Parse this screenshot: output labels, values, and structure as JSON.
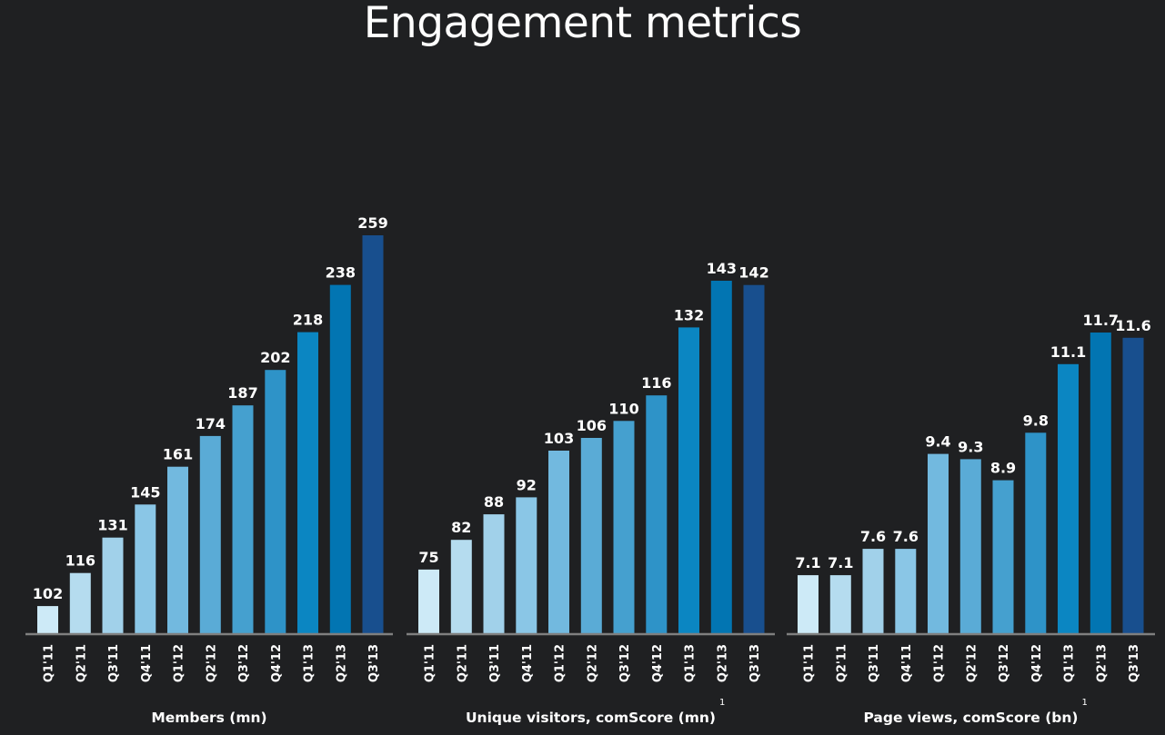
{
  "page": {
    "title": "Engagement metrics"
  },
  "colors": {
    "background": "#1f2022",
    "axis": "#7f7f7f",
    "text": "#ffffff",
    "bar_palette": [
      "#cdeaf7",
      "#b5dcef",
      "#a1d1ea",
      "#8ac6e6",
      "#72b9df",
      "#5aabd6",
      "#45a0cf",
      "#2e93c8",
      "#0b86c2",
      "#0275b2",
      "#184f8e"
    ]
  },
  "chart_data": [
    {
      "type": "bar",
      "title": "",
      "xlabel": "Members (mn)",
      "xlabel_footnote": "",
      "ylabel": "",
      "categories": [
        "Q1'11",
        "Q2'11",
        "Q3'11",
        "Q4'11",
        "Q1'12",
        "Q2'12",
        "Q3'12",
        "Q4'12",
        "Q1'13",
        "Q2'13",
        "Q3'13"
      ],
      "values": [
        102,
        116,
        131,
        145,
        161,
        174,
        187,
        202,
        218,
        238,
        259
      ],
      "value_labels": [
        "102",
        "116",
        "131",
        "145",
        "161",
        "174",
        "187",
        "202",
        "218",
        "238",
        "259"
      ],
      "ylim": [
        90.5,
        259
      ],
      "grid": false,
      "legend": "none"
    },
    {
      "type": "bar",
      "title": "",
      "xlabel": "Unique visitors, comScore (mn)",
      "xlabel_footnote": "1",
      "ylabel": "",
      "categories": [
        "Q1'11",
        "Q2'11",
        "Q3'11",
        "Q4'11",
        "Q1'12",
        "Q2'12",
        "Q3'12",
        "Q4'12",
        "Q1'13",
        "Q2'13",
        "Q3'13"
      ],
      "values": [
        75,
        82,
        88,
        92,
        103,
        106,
        110,
        116,
        132,
        143,
        142
      ],
      "value_labels": [
        "75",
        "82",
        "88",
        "92",
        "103",
        "106",
        "110",
        "116",
        "132",
        "143",
        "142"
      ],
      "ylim": [
        60,
        143
      ],
      "grid": false,
      "legend": "none"
    },
    {
      "type": "bar",
      "title": "",
      "xlabel": "Page views, comScore (bn)",
      "xlabel_footnote": "1",
      "ylabel": "",
      "categories": [
        "Q1'11",
        "Q2'11",
        "Q3'11",
        "Q4'11",
        "Q1'12",
        "Q2'12",
        "Q3'12",
        "Q4'12",
        "Q1'13",
        "Q2'13",
        "Q3'13"
      ],
      "values": [
        7.1,
        7.1,
        7.6,
        7.6,
        9.4,
        9.3,
        8.9,
        9.8,
        11.1,
        11.7,
        11.6
      ],
      "value_labels": [
        "7.1",
        "7.1",
        "7.6",
        "7.6",
        "9.4",
        "9.3",
        "8.9",
        "9.8",
        "11.1",
        "11.7",
        "11.6"
      ],
      "ylim": [
        6.0,
        11.7
      ],
      "grid": false,
      "legend": "none"
    }
  ]
}
